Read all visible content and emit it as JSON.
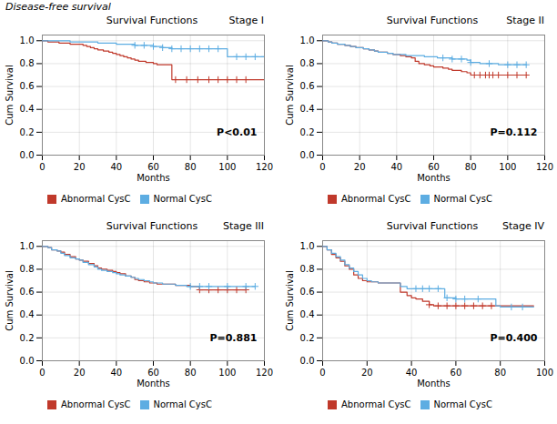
{
  "title": "Disease-free survival",
  "chart_data": [
    {
      "type": "step",
      "title": "Survival Functions",
      "subtitle": "Stage I",
      "annotations": [
        "P<0.01"
      ],
      "xlabel": "Months",
      "ylabel": "Cum Survival",
      "xlim": [
        0,
        120
      ],
      "ylim": [
        0.0,
        1.05
      ],
      "xticks": [
        0,
        20,
        40,
        60,
        80,
        100,
        120
      ],
      "yticks": [
        {
          "value": 0.0,
          "label": "0.0"
        },
        0.2,
        0.4,
        0.6,
        0.8,
        {
          "value": 1.0,
          "label": "1.0"
        }
      ],
      "grid": true,
      "legend": "below",
      "series": [
        {
          "name": "Abnormal CysC",
          "color": "#c0392b",
          "marker": "plus",
          "x": [
            0,
            3,
            6,
            9,
            12,
            15,
            18,
            20,
            22,
            24,
            26,
            28,
            30,
            33,
            36,
            38,
            40,
            42,
            44,
            46,
            48,
            50,
            52,
            54,
            56,
            58,
            60,
            62,
            64,
            66,
            68,
            70,
            72,
            95,
            100,
            110,
            120
          ],
          "values": [
            1.0,
            0.99,
            0.99,
            0.98,
            0.98,
            0.97,
            0.97,
            0.97,
            0.96,
            0.95,
            0.94,
            0.93,
            0.92,
            0.91,
            0.9,
            0.89,
            0.88,
            0.87,
            0.86,
            0.85,
            0.84,
            0.83,
            0.82,
            0.82,
            0.81,
            0.81,
            0.8,
            0.79,
            0.79,
            0.79,
            0.79,
            0.66,
            0.66,
            0.66,
            0.66,
            0.66,
            0.66
          ],
          "censors": {
            "x": [
              72,
              78,
              84,
              90,
              95,
              100,
              105,
              110
            ],
            "values": [
              0.66,
              0.66,
              0.66,
              0.66,
              0.66,
              0.66,
              0.66,
              0.66
            ]
          }
        },
        {
          "name": "Normal CysC",
          "color": "#5dade2",
          "marker": "plus",
          "x": [
            0,
            5,
            10,
            15,
            20,
            25,
            30,
            35,
            40,
            45,
            50,
            55,
            60,
            65,
            70,
            75,
            80,
            85,
            90,
            95,
            100,
            102,
            105,
            108,
            110,
            115,
            120
          ],
          "values": [
            1.0,
            1.0,
            1.0,
            0.99,
            0.99,
            0.99,
            0.98,
            0.98,
            0.97,
            0.97,
            0.96,
            0.96,
            0.95,
            0.94,
            0.93,
            0.93,
            0.93,
            0.93,
            0.93,
            0.93,
            0.86,
            0.86,
            0.86,
            0.86,
            0.86,
            0.86,
            0.86
          ],
          "censors": {
            "x": [
              50,
              55,
              60,
              65,
              70,
              75,
              80,
              85,
              90,
              95,
              105,
              110,
              115,
              120
            ],
            "values": [
              0.96,
              0.96,
              0.95,
              0.94,
              0.93,
              0.93,
              0.93,
              0.93,
              0.93,
              0.93,
              0.86,
              0.86,
              0.86,
              0.86
            ]
          }
        }
      ]
    },
    {
      "type": "step",
      "title": "Survival Functions",
      "subtitle": "Stage II",
      "annotations": [
        "P=0.112"
      ],
      "xlabel": "Months",
      "ylabel": "Cum Survival",
      "xlim": [
        0,
        120
      ],
      "ylim": [
        0.0,
        1.05
      ],
      "xticks": [
        0,
        20,
        40,
        60,
        80,
        100,
        120
      ],
      "yticks": [
        {
          "value": 0.0,
          "label": "0.0"
        },
        0.2,
        0.4,
        0.6,
        0.8,
        {
          "value": 1.0,
          "label": "1.0"
        }
      ],
      "grid": true,
      "legend": "below",
      "series": [
        {
          "name": "Abnormal CysC",
          "color": "#c0392b",
          "marker": "plus",
          "x": [
            0,
            3,
            5,
            8,
            10,
            12,
            15,
            18,
            20,
            22,
            25,
            28,
            30,
            32,
            35,
            38,
            40,
            42,
            45,
            48,
            50,
            52,
            55,
            58,
            60,
            62,
            65,
            68,
            70,
            72,
            75,
            78,
            80,
            82,
            85,
            88,
            90,
            95,
            100,
            105,
            110
          ],
          "values": [
            1.0,
            0.99,
            0.98,
            0.97,
            0.97,
            0.96,
            0.95,
            0.94,
            0.94,
            0.93,
            0.92,
            0.91,
            0.9,
            0.9,
            0.89,
            0.88,
            0.88,
            0.87,
            0.86,
            0.85,
            0.82,
            0.8,
            0.79,
            0.78,
            0.77,
            0.77,
            0.76,
            0.75,
            0.74,
            0.74,
            0.73,
            0.72,
            0.7,
            0.7,
            0.7,
            0.7,
            0.7,
            0.7,
            0.7,
            0.7,
            0.7
          ],
          "censors": {
            "x": [
              82,
              85,
              88,
              90,
              92,
              95,
              100,
              105,
              110
            ],
            "values": [
              0.7,
              0.7,
              0.7,
              0.7,
              0.7,
              0.7,
              0.7,
              0.7,
              0.7
            ]
          }
        },
        {
          "name": "Normal CysC",
          "color": "#5dade2",
          "marker": "plus",
          "x": [
            0,
            3,
            5,
            8,
            10,
            12,
            15,
            18,
            20,
            22,
            25,
            28,
            30,
            32,
            35,
            38,
            40,
            42,
            45,
            48,
            50,
            52,
            55,
            58,
            60,
            62,
            65,
            68,
            70,
            72,
            75,
            78,
            80,
            82,
            85,
            88,
            90,
            95,
            100,
            105,
            110
          ],
          "values": [
            1.0,
            0.99,
            0.98,
            0.97,
            0.97,
            0.96,
            0.95,
            0.94,
            0.94,
            0.93,
            0.92,
            0.91,
            0.9,
            0.9,
            0.89,
            0.88,
            0.88,
            0.88,
            0.87,
            0.87,
            0.87,
            0.87,
            0.86,
            0.86,
            0.86,
            0.85,
            0.85,
            0.85,
            0.84,
            0.84,
            0.84,
            0.83,
            0.81,
            0.81,
            0.8,
            0.8,
            0.8,
            0.79,
            0.79,
            0.79,
            0.79
          ],
          "censors": {
            "x": [
              65,
              70,
              75,
              80,
              90,
              100,
              105,
              110
            ],
            "values": [
              0.85,
              0.84,
              0.84,
              0.81,
              0.8,
              0.79,
              0.79,
              0.79
            ]
          }
        }
      ]
    },
    {
      "type": "step",
      "title": "Survival Functions",
      "subtitle": "Stage III",
      "annotations": [
        "P=0.881"
      ],
      "xlabel": "Months",
      "ylabel": "Cum Survival",
      "xlim": [
        0,
        120
      ],
      "ylim": [
        0.0,
        1.05
      ],
      "xticks": [
        0,
        20,
        40,
        60,
        80,
        100,
        120
      ],
      "yticks": [
        {
          "value": 0.0,
          "label": "0.0"
        },
        0.2,
        0.4,
        0.6,
        0.8,
        {
          "value": 1.0,
          "label": "1.0"
        }
      ],
      "grid": true,
      "legend": "below",
      "series": [
        {
          "name": "Abnormal CysC",
          "color": "#c0392b",
          "marker": "plus",
          "x": [
            0,
            3,
            5,
            8,
            10,
            12,
            15,
            18,
            20,
            22,
            25,
            28,
            30,
            32,
            35,
            38,
            40,
            42,
            45,
            48,
            50,
            52,
            55,
            58,
            60,
            62,
            65,
            68,
            70,
            72,
            75,
            78,
            80,
            85,
            90,
            95,
            100,
            105,
            110
          ],
          "values": [
            1.0,
            0.99,
            0.97,
            0.96,
            0.95,
            0.93,
            0.91,
            0.89,
            0.88,
            0.87,
            0.85,
            0.83,
            0.81,
            0.8,
            0.79,
            0.78,
            0.77,
            0.76,
            0.74,
            0.73,
            0.71,
            0.7,
            0.69,
            0.68,
            0.68,
            0.67,
            0.67,
            0.67,
            0.67,
            0.66,
            0.66,
            0.66,
            0.65,
            0.62,
            0.62,
            0.62,
            0.62,
            0.62,
            0.62
          ],
          "censors": {
            "x": [
              85,
              90,
              95,
              100,
              105,
              110
            ],
            "values": [
              0.62,
              0.62,
              0.62,
              0.62,
              0.62,
              0.62
            ]
          }
        },
        {
          "name": "Normal CysC",
          "color": "#5dade2",
          "marker": "plus",
          "x": [
            0,
            3,
            5,
            8,
            10,
            12,
            15,
            18,
            20,
            22,
            25,
            28,
            30,
            32,
            35,
            38,
            40,
            42,
            45,
            48,
            50,
            52,
            55,
            58,
            60,
            62,
            65,
            68,
            70,
            72,
            75,
            78,
            80,
            85,
            90,
            95,
            100,
            105,
            110,
            115
          ],
          "values": [
            1.0,
            0.99,
            0.97,
            0.96,
            0.94,
            0.92,
            0.9,
            0.89,
            0.88,
            0.86,
            0.84,
            0.82,
            0.8,
            0.79,
            0.78,
            0.77,
            0.76,
            0.75,
            0.74,
            0.73,
            0.72,
            0.71,
            0.7,
            0.69,
            0.68,
            0.68,
            0.67,
            0.67,
            0.67,
            0.66,
            0.66,
            0.65,
            0.65,
            0.65,
            0.65,
            0.65,
            0.65,
            0.65,
            0.65,
            0.65
          ],
          "censors": {
            "x": [
              80,
              85,
              90,
              100,
              110,
              115
            ],
            "values": [
              0.65,
              0.65,
              0.65,
              0.65,
              0.65,
              0.65
            ]
          }
        }
      ]
    },
    {
      "type": "step",
      "title": "Survival Functions",
      "subtitle": "Stage IV",
      "annotations": [
        "P=0.400"
      ],
      "xlabel": "Months",
      "ylabel": "Cum Survival",
      "xlim": [
        0,
        100
      ],
      "ylim": [
        0.0,
        1.05
      ],
      "xticks": [
        0,
        20,
        40,
        60,
        80,
        100
      ],
      "yticks": [
        {
          "value": 0.0,
          "label": "0.0"
        },
        0.2,
        0.4,
        0.6,
        0.8,
        {
          "value": 1.0,
          "label": "1.0"
        }
      ],
      "grid": true,
      "legend": "below",
      "series": [
        {
          "name": "Abnormal CysC",
          "color": "#c0392b",
          "marker": "plus",
          "x": [
            0,
            2,
            4,
            6,
            8,
            10,
            12,
            14,
            16,
            18,
            20,
            22,
            25,
            28,
            30,
            32,
            35,
            38,
            40,
            42,
            45,
            48,
            50,
            55,
            60,
            65,
            70,
            75,
            80,
            85,
            90,
            95
          ],
          "values": [
            1.0,
            0.97,
            0.93,
            0.9,
            0.87,
            0.83,
            0.8,
            0.75,
            0.72,
            0.7,
            0.69,
            0.69,
            0.68,
            0.68,
            0.68,
            0.68,
            0.6,
            0.57,
            0.55,
            0.54,
            0.52,
            0.49,
            0.48,
            0.48,
            0.48,
            0.48,
            0.48,
            0.48,
            0.48,
            0.48,
            0.48,
            0.48
          ],
          "censors": {
            "x": [
              48,
              52,
              56,
              60,
              64,
              68,
              72,
              76
            ],
            "values": [
              0.49,
              0.48,
              0.48,
              0.48,
              0.48,
              0.48,
              0.48,
              0.48
            ]
          }
        },
        {
          "name": "Normal CysC",
          "color": "#5dade2",
          "marker": "plus",
          "x": [
            0,
            2,
            4,
            6,
            8,
            10,
            12,
            14,
            16,
            18,
            20,
            22,
            25,
            28,
            30,
            32,
            35,
            38,
            40,
            42,
            45,
            48,
            50,
            55,
            60,
            65,
            70,
            72,
            75,
            78,
            80,
            85,
            90,
            95
          ],
          "values": [
            1.0,
            0.97,
            0.94,
            0.91,
            0.88,
            0.84,
            0.81,
            0.78,
            0.75,
            0.72,
            0.7,
            0.69,
            0.68,
            0.68,
            0.68,
            0.68,
            0.65,
            0.63,
            0.63,
            0.63,
            0.63,
            0.63,
            0.63,
            0.55,
            0.54,
            0.54,
            0.54,
            0.54,
            0.54,
            0.48,
            0.47,
            0.47,
            0.47,
            0.47
          ],
          "censors": {
            "x": [
              42,
              45,
              48,
              52,
              56,
              60,
              64,
              70,
              85,
              90
            ],
            "values": [
              0.63,
              0.63,
              0.63,
              0.63,
              0.55,
              0.54,
              0.54,
              0.54,
              0.47,
              0.47
            ]
          }
        }
      ]
    }
  ]
}
